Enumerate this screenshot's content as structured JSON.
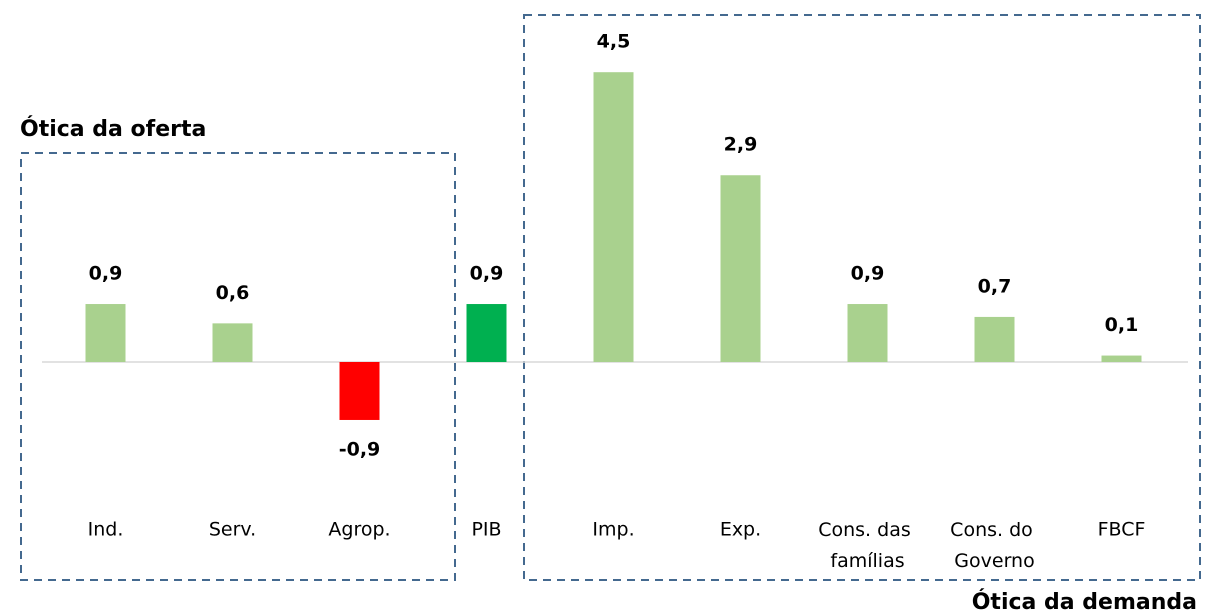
{
  "chart_data": {
    "type": "bar",
    "categories": [
      "Ind.",
      "Serv.",
      "Agrop.",
      "PIB",
      "Imp.",
      "Exp.",
      "Cons. das famílias",
      "Cons. do Governo",
      "FBCF"
    ],
    "values": [
      0.9,
      0.6,
      -0.9,
      0.9,
      4.5,
      2.9,
      0.9,
      0.7,
      0.1
    ],
    "value_labels": [
      "0,9",
      "0,6",
      "-0,9",
      "0,9",
      "4,5",
      "2,9",
      "0,9",
      "0,7",
      "0,1"
    ],
    "colors": [
      "#a9d18e",
      "#a9d18e",
      "#ff0000",
      "#00b050",
      "#a9d18e",
      "#a9d18e",
      "#a9d18e",
      "#a9d18e",
      "#a9d18e"
    ],
    "annotations": [
      "Ótica da oferta",
      "Ótica da demanda"
    ]
  }
}
